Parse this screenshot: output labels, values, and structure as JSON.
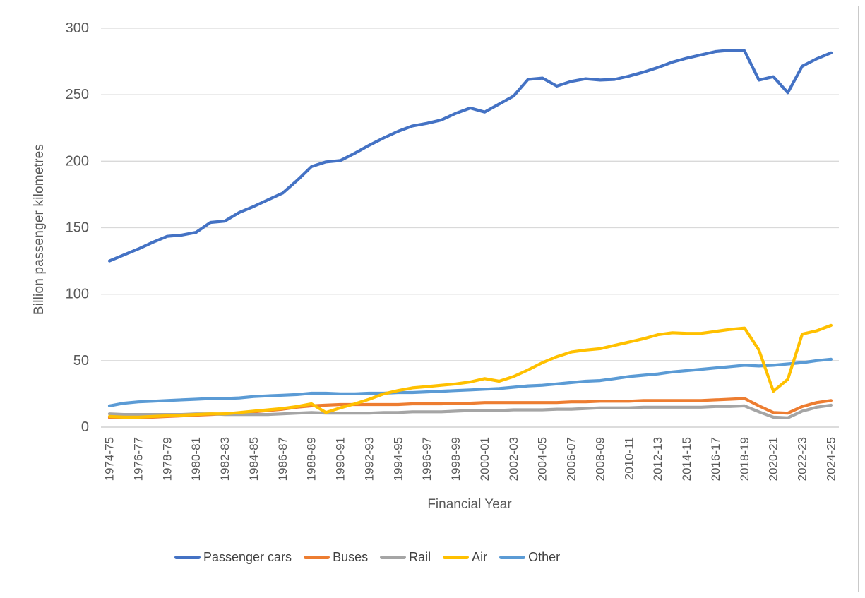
{
  "chart_data": {
    "type": "line",
    "title": "",
    "xlabel": "Financial Year",
    "ylabel": "Billion passenger kilometres",
    "ylim": [
      0,
      300
    ],
    "y_ticks": [
      0,
      50,
      100,
      150,
      200,
      250,
      300
    ],
    "grid": "horizontal",
    "legend_position": "bottom",
    "x_tick_label_step": 2,
    "categories": [
      "1974-75",
      "1975-76",
      "1976-77",
      "1977-78",
      "1978-79",
      "1979-80",
      "1980-81",
      "1981-82",
      "1982-83",
      "1983-84",
      "1984-85",
      "1985-86",
      "1986-87",
      "1987-88",
      "1988-89",
      "1989-90",
      "1990-91",
      "1991-92",
      "1992-93",
      "1993-94",
      "1994-95",
      "1995-96",
      "1996-97",
      "1997-98",
      "1998-99",
      "1999-00",
      "2000-01",
      "2001-02",
      "2002-03",
      "2003-04",
      "2004-05",
      "2005-06",
      "2006-07",
      "2007-08",
      "2008-09",
      "2009-10",
      "2010-11",
      "2011-12",
      "2012-13",
      "2013-14",
      "2014-15",
      "2015-16",
      "2016-17",
      "2017-18",
      "2018-19",
      "2019-20",
      "2020-21",
      "2021-22",
      "2022-23",
      "2023-24",
      "2024-25"
    ],
    "series": [
      {
        "name": "Passenger cars",
        "color": "#4472C4",
        "values": [
          125,
          129.5,
          134,
          139,
          143.5,
          144.5,
          146.5,
          154,
          155,
          161.5,
          166,
          171,
          176,
          185.5,
          196,
          199.5,
          200.5,
          206,
          212,
          217.5,
          222.5,
          226.5,
          228.5,
          231,
          236,
          240,
          237,
          243,
          249,
          261.5,
          262.5,
          256.5,
          260,
          262,
          261,
          261.5,
          264,
          267,
          270.5,
          274.5,
          277.5,
          280,
          282.5,
          283.5,
          283,
          261,
          263.5,
          251.5,
          271.5,
          277,
          281.5
        ]
      },
      {
        "name": "Buses",
        "color": "#ED7D31",
        "values": [
          7,
          7,
          7.5,
          7.5,
          8,
          8.5,
          9,
          9.5,
          10,
          10.5,
          11.5,
          12.5,
          13.5,
          15,
          16,
          16.5,
          17,
          17,
          17,
          17,
          17,
          17.5,
          17.5,
          17.5,
          18,
          18,
          18.5,
          18.5,
          18.5,
          18.5,
          18.5,
          18.5,
          19,
          19,
          19.5,
          19.5,
          19.5,
          20,
          20,
          20,
          20,
          20,
          20.5,
          21,
          21.5,
          16,
          11,
          10.5,
          15.5,
          18.5,
          20
        ]
      },
      {
        "name": "Rail",
        "color": "#A5A5A5",
        "values": [
          10,
          9.5,
          9.5,
          9.5,
          9.5,
          9.5,
          10,
          10,
          9.5,
          9.5,
          9.5,
          9.5,
          10,
          10.5,
          11,
          10.5,
          10.5,
          10.5,
          10.5,
          11,
          11,
          11.5,
          11.5,
          11.5,
          12,
          12.5,
          12.5,
          12.5,
          13,
          13,
          13,
          13.5,
          13.5,
          14,
          14.5,
          14.5,
          14.5,
          15,
          15,
          15,
          15,
          15,
          15.5,
          15.5,
          16,
          11.5,
          7.5,
          7,
          12,
          15,
          16.5
        ]
      },
      {
        "name": "Air",
        "color": "#FFC000",
        "values": [
          8,
          7.5,
          7.5,
          8,
          8.5,
          9,
          9.5,
          10,
          10,
          11,
          12,
          13,
          14,
          15.5,
          17.5,
          11,
          14.5,
          17.5,
          21,
          25,
          27.5,
          29.5,
          30.5,
          31.5,
          32.5,
          34,
          36.5,
          34.5,
          38,
          43,
          48.5,
          53,
          56.5,
          58,
          59,
          61.5,
          64,
          66.5,
          69.5,
          71,
          70.5,
          70.5,
          72,
          73.5,
          74.5,
          58,
          27,
          36,
          70,
          72.5,
          76.5
        ]
      },
      {
        "name": "Other",
        "color": "#5B9BD5",
        "values": [
          16,
          18,
          19,
          19.5,
          20,
          20.5,
          21,
          21.5,
          21.5,
          22,
          23,
          23.5,
          24,
          24.5,
          25.5,
          25.5,
          25,
          25,
          25.5,
          25.5,
          26,
          26,
          26.5,
          27,
          27.5,
          28,
          28.5,
          29,
          30,
          31,
          31.5,
          32.5,
          33.5,
          34.5,
          35,
          36.5,
          38,
          39,
          40,
          41.5,
          42.5,
          43.5,
          44.5,
          45.5,
          46.5,
          46,
          46.5,
          47.5,
          48.5,
          50,
          51
        ]
      }
    ]
  }
}
